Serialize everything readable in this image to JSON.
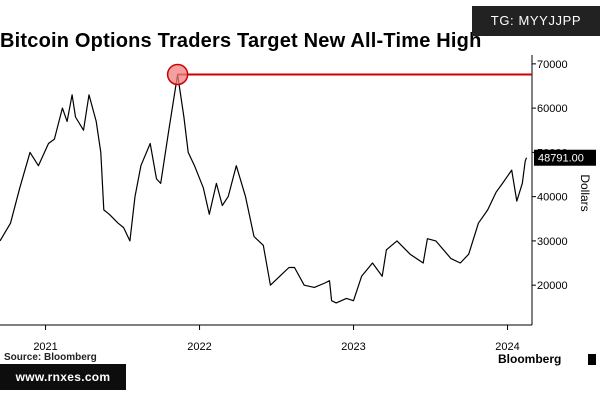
{
  "header": {
    "title": "Bitcoin Options Traders Target New All-Time High",
    "tag": "TG: MYYJJPP"
  },
  "footer": {
    "source": "Source: Bloomberg",
    "watermark": "www.rnxes.com",
    "brand": "Bloomberg"
  },
  "colors": {
    "line": "#000000",
    "target": "#cc0000",
    "marker": "#f08080"
  },
  "chart_data": {
    "type": "line",
    "title": "Bitcoin Options Traders Target New All-Time High",
    "ylabel": "Dollars",
    "xlabel": "",
    "x_ticks": [
      "2021",
      "2022",
      "2023",
      "2024"
    ],
    "y_ticks": [
      20000,
      30000,
      40000,
      50000,
      60000,
      70000
    ],
    "ylim": [
      11000,
      72000
    ],
    "xlim": [
      "2020-09-15",
      "2024-02-28"
    ],
    "grid": false,
    "y_axis_side": "right",
    "last_value_label": "48791.00",
    "reference_line": {
      "value": 67600,
      "from": "2021-11-10",
      "to": "2024-02-28"
    },
    "highlight_point": {
      "x": "2021-11-10",
      "y": 67600
    },
    "series": [
      {
        "x": [
          "2020-09-15",
          "2020-10-10",
          "2020-11-01",
          "2020-11-25",
          "2020-12-15",
          "2021-01-08",
          "2021-01-22",
          "2021-02-10",
          "2021-02-21",
          "2021-03-05",
          "2021-03-13",
          "2021-04-01",
          "2021-04-14",
          "2021-05-01",
          "2021-05-12",
          "2021-05-19",
          "2021-06-01",
          "2021-06-22",
          "2021-07-05",
          "2021-07-20",
          "2021-08-01",
          "2021-08-15",
          "2021-09-06",
          "2021-09-21",
          "2021-10-01",
          "2021-10-20",
          "2021-11-10",
          "2021-11-25",
          "2021-12-05",
          "2021-12-20",
          "2022-01-10",
          "2022-01-24",
          "2022-02-10",
          "2022-02-24",
          "2022-03-10",
          "2022-03-29",
          "2022-04-20",
          "2022-05-10",
          "2022-06-01",
          "2022-06-18",
          "2022-07-10",
          "2022-08-01",
          "2022-08-14",
          "2022-09-06",
          "2022-09-30",
          "2022-10-25",
          "2022-11-05",
          "2022-11-10",
          "2022-11-21",
          "2022-12-15",
          "2023-01-01",
          "2023-01-20",
          "2023-02-15",
          "2023-03-10",
          "2023-03-20",
          "2023-04-14",
          "2023-05-15",
          "2023-06-15",
          "2023-06-25",
          "2023-07-15",
          "2023-08-20",
          "2023-09-11",
          "2023-10-01",
          "2023-10-24",
          "2023-11-15",
          "2023-12-05",
          "2023-12-20",
          "2024-01-11",
          "2024-01-23",
          "2024-02-05",
          "2024-02-12",
          "2024-02-15"
        ],
        "y": [
          30000,
          34000,
          42000,
          50000,
          47000,
          52000,
          53000,
          60000,
          57000,
          63000,
          58000,
          55000,
          63000,
          57000,
          50000,
          37000,
          36000,
          34000,
          33000,
          30000,
          40000,
          47000,
          52000,
          44000,
          43000,
          55000,
          67600,
          58000,
          50000,
          47000,
          42000,
          36000,
          43000,
          38000,
          40000,
          47000,
          40000,
          31000,
          29000,
          20000,
          22000,
          24000,
          24000,
          20000,
          19500,
          20500,
          21000,
          16500,
          16000,
          17000,
          16500,
          22000,
          25000,
          22000,
          28000,
          30000,
          27000,
          25000,
          30500,
          30000,
          26000,
          25000,
          27000,
          34000,
          37000,
          41000,
          43000,
          46000,
          39000,
          43000,
          48000,
          48791
        ]
      }
    ]
  }
}
